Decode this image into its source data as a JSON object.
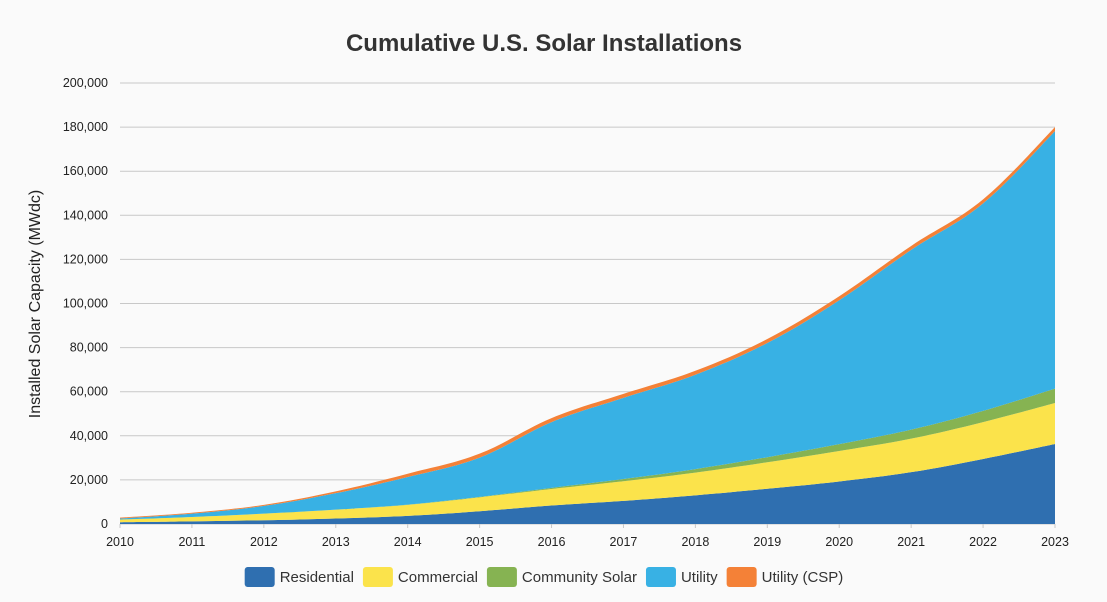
{
  "chart_data": {
    "type": "area",
    "stacked": true,
    "title": "Cumulative U.S. Solar Installations",
    "xlabel": "",
    "ylabel": "Installed Solar Capacity (MWdc)",
    "ylim": [
      0,
      200000
    ],
    "yticks": [
      "0",
      "20,000",
      "40,000",
      "60,000",
      "80,000",
      "100,000",
      "120,000",
      "140,000",
      "160,000",
      "180,000",
      "200,000"
    ],
    "x": [
      "2010",
      "2011",
      "2012",
      "2013",
      "2014",
      "2015",
      "2016",
      "2017",
      "2018",
      "2019",
      "2020",
      "2021",
      "2022",
      "2023"
    ],
    "grid": true,
    "legend_position": "bottom",
    "series": [
      {
        "name": "Residential",
        "color": "#2f6fb0",
        "values": [
          800,
          1200,
          1700,
          2500,
          3700,
          5800,
          8400,
          10500,
          13000,
          16000,
          19300,
          23500,
          29500,
          36300
        ]
      },
      {
        "name": "Commercial",
        "color": "#fbe34b",
        "values": [
          1200,
          2000,
          3000,
          4000,
          5000,
          6300,
          7500,
          8900,
          10300,
          12000,
          13800,
          15200,
          16700,
          18600
        ]
      },
      {
        "name": "Community Solar",
        "color": "#86b352",
        "values": [
          0,
          0,
          0,
          0,
          100,
          200,
          500,
          1000,
          1600,
          2300,
          3100,
          4100,
          5100,
          6500
        ]
      },
      {
        "name": "Utility",
        "color": "#38b1e4",
        "values": [
          500,
          1500,
          3500,
          7500,
          12500,
          17800,
          29800,
          36800,
          42800,
          51800,
          65300,
          81500,
          94100,
          116800
        ]
      },
      {
        "name": "Utility (CSP)",
        "color": "#f48137",
        "values": [
          400,
          400,
          500,
          800,
          1500,
          1800,
          1800,
          1800,
          1800,
          1800,
          1800,
          1800,
          1800,
          1800
        ]
      }
    ]
  }
}
